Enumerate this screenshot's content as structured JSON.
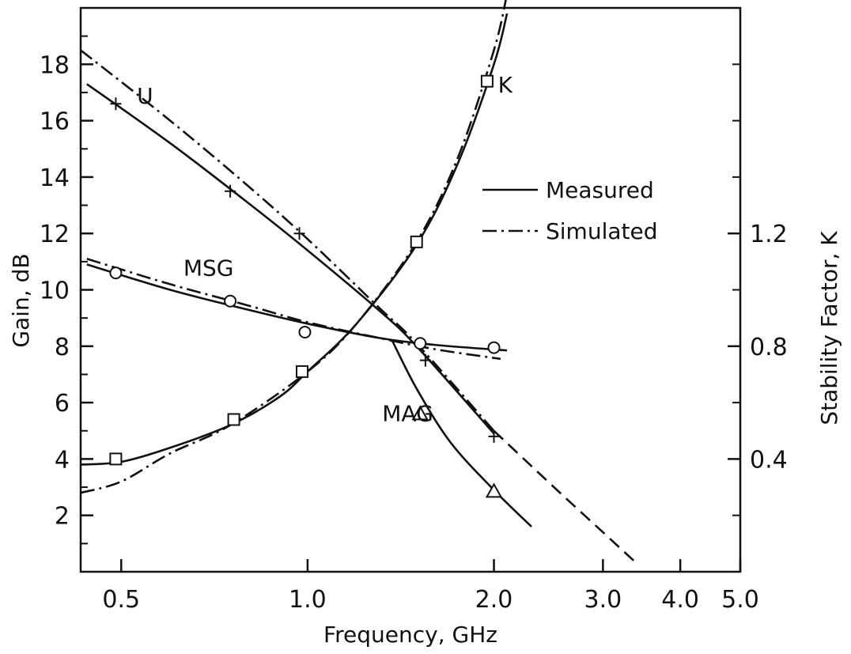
{
  "chart_data": {
    "type": "line",
    "xlabel": "Frequency, GHz",
    "ylabel_left": "Gain, dB",
    "ylabel_right": "Stability Factor, K",
    "x_scale": "log",
    "xlim": [
      0.43,
      5.0
    ],
    "ylim_left": [
      0,
      20
    ],
    "ylim_right": [
      0,
      2.0
    ],
    "x_ticks": [
      {
        "value": 0.5,
        "label": "0.5"
      },
      {
        "value": 1.0,
        "label": "1.0"
      },
      {
        "value": 2.0,
        "label": "2.0"
      },
      {
        "value": 3.0,
        "label": "3.0"
      },
      {
        "value": 4.0,
        "label": "4.0"
      },
      {
        "value": 5.0,
        "label": "5.0"
      }
    ],
    "y_ticks_left": [
      {
        "value": 2,
        "label": "2"
      },
      {
        "value": 4,
        "label": "4"
      },
      {
        "value": 6,
        "label": "6"
      },
      {
        "value": 8,
        "label": "8"
      },
      {
        "value": 10,
        "label": "10"
      },
      {
        "value": 12,
        "label": "12"
      },
      {
        "value": 14,
        "label": "14"
      },
      {
        "value": 16,
        "label": "16"
      },
      {
        "value": 18,
        "label": "18"
      }
    ],
    "y_ticks_right": [
      {
        "value": 0.4,
        "label": "0.4"
      },
      {
        "value": 0.8,
        "label": "0.8"
      },
      {
        "value": 1.2,
        "label": "1.2"
      }
    ],
    "legend": {
      "position": "upper-right",
      "entries": [
        {
          "label": "Measured",
          "style": "solid"
        },
        {
          "label": "Simulated",
          "style": "dashdot"
        }
      ]
    },
    "grid": false,
    "curve_labels": [
      {
        "text": "U",
        "x": 0.53,
        "y": 16.6
      },
      {
        "text": "K",
        "x": 2.03,
        "y": 17.0
      },
      {
        "text": "MSG",
        "x": 0.63,
        "y": 10.5
      },
      {
        "text": "MAG",
        "x": 1.32,
        "y": 5.35
      }
    ],
    "series": [
      {
        "curve": "U",
        "style": "solid",
        "axis": "left",
        "x": [
          0.44,
          0.6,
          0.8,
          1.0,
          1.3,
          1.5,
          2.0
        ],
        "y": [
          17.3,
          15.2,
          13.1,
          11.4,
          9.3,
          8.0,
          4.9
        ]
      },
      {
        "curve": "U",
        "style": "dashdot",
        "axis": "left",
        "x": [
          0.43,
          0.6,
          0.8,
          1.0,
          1.3,
          1.5,
          2.0
        ],
        "y": [
          18.5,
          16.0,
          13.7,
          11.8,
          9.4,
          8.1,
          5.0
        ]
      },
      {
        "curve": "U",
        "style": "dashed",
        "axis": "left",
        "x": [
          2.0,
          2.5,
          3.0,
          3.4
        ],
        "y": [
          5.0,
          3.0,
          1.4,
          0.3
        ]
      },
      {
        "curve": "MSG",
        "style": "solid",
        "axis": "left",
        "x": [
          0.44,
          0.6,
          0.8,
          1.0,
          1.3,
          1.6,
          2.1
        ],
        "y": [
          10.9,
          10.0,
          9.3,
          8.8,
          8.3,
          8.05,
          7.85
        ]
      },
      {
        "curve": "MSG",
        "style": "dashdot",
        "axis": "left",
        "x": [
          0.44,
          0.6,
          0.8,
          1.0,
          1.3,
          1.6,
          2.05
        ],
        "y": [
          11.1,
          10.2,
          9.45,
          8.85,
          8.3,
          7.9,
          7.55
        ]
      },
      {
        "curve": "MAG",
        "style": "solid",
        "axis": "left",
        "x": [
          1.37,
          1.5,
          1.7,
          2.0,
          2.3
        ],
        "y": [
          8.2,
          6.5,
          4.6,
          2.9,
          1.6
        ]
      },
      {
        "curve": "K",
        "style": "solid",
        "axis": "right",
        "x": [
          0.43,
          0.5,
          0.6,
          0.75,
          0.9,
          1.0,
          1.2,
          1.5,
          1.75,
          2.0,
          2.1
        ],
        "y": [
          0.38,
          0.39,
          0.44,
          0.52,
          0.62,
          0.71,
          0.88,
          1.16,
          1.45,
          1.8,
          1.98
        ]
      },
      {
        "curve": "K",
        "style": "dashdot",
        "axis": "right",
        "x": [
          0.43,
          0.5,
          0.6,
          0.75,
          1.0,
          1.2,
          1.5,
          1.75,
          2.0,
          2.1
        ],
        "y": [
          0.28,
          0.32,
          0.42,
          0.52,
          0.71,
          0.88,
          1.17,
          1.47,
          1.85,
          2.05
        ]
      }
    ],
    "markers": [
      {
        "curve": "U",
        "shape": "plus",
        "axis": "left",
        "x": [
          0.49,
          0.75,
          0.97,
          1.55,
          2.0
        ],
        "y": [
          16.6,
          13.5,
          12.0,
          7.5,
          4.8
        ]
      },
      {
        "curve": "MSG",
        "shape": "circle",
        "axis": "left",
        "x": [
          0.49,
          0.75,
          0.99,
          1.52,
          2.0
        ],
        "y": [
          10.6,
          9.6,
          8.5,
          8.1,
          7.95
        ]
      },
      {
        "curve": "K",
        "shape": "square",
        "axis": "right",
        "x": [
          0.49,
          0.76,
          0.98,
          1.5,
          1.95
        ],
        "y": [
          0.4,
          0.54,
          0.71,
          1.17,
          1.74
        ]
      },
      {
        "curve": "MAG",
        "shape": "triangle",
        "axis": "left",
        "x": [
          1.52,
          2.0
        ],
        "y": [
          5.6,
          2.85
        ]
      }
    ]
  }
}
